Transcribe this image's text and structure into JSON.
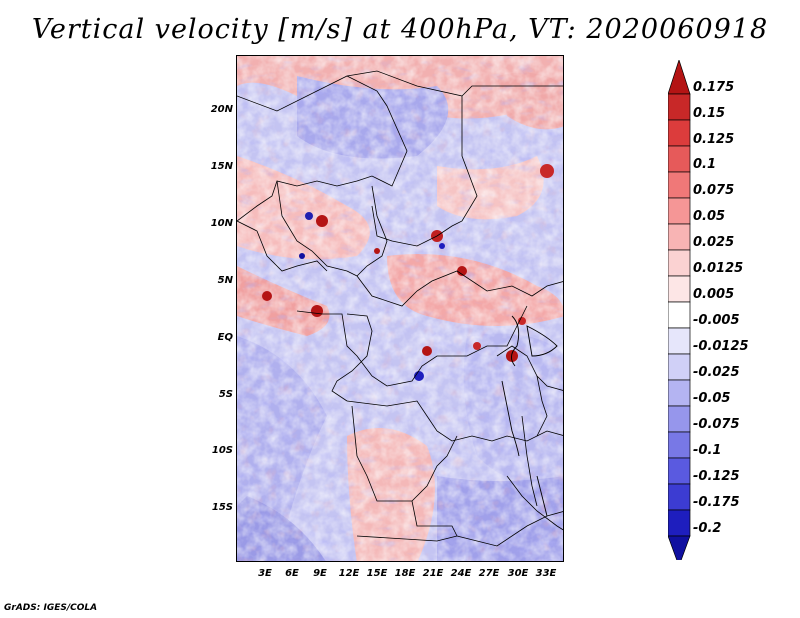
{
  "title": "Vertical velocity [m/s] at 400hPa, VT: 2020060918",
  "credit": "GrADS: IGES/COLA",
  "map": {
    "lat_labels": [
      "20N",
      "15N",
      "10N",
      "5N",
      "EQ",
      "5S",
      "10S",
      "15S"
    ],
    "lon_labels": [
      "3E",
      "6E",
      "9E",
      "12E",
      "15E",
      "18E",
      "21E",
      "24E",
      "27E",
      "30E",
      "33E"
    ]
  },
  "colorbar": {
    "levels": [
      "0.175",
      "0.15",
      "0.125",
      "0.1",
      "0.075",
      "0.05",
      "0.025",
      "0.0125",
      "0.005",
      "-0.005",
      "-0.0125",
      "-0.025",
      "-0.05",
      "-0.075",
      "-0.1",
      "-0.125",
      "-0.175",
      "-0.2"
    ],
    "colors": [
      "#b41414",
      "#c82828",
      "#dc3c3c",
      "#e65a5a",
      "#f07878",
      "#f59696",
      "#f8b4b4",
      "#fbd2d2",
      "#fde6e6",
      "#ffffff",
      "#e6e6fb",
      "#d0d0f7",
      "#b4b4f2",
      "#9696ec",
      "#7878e6",
      "#5a5ae0",
      "#3c3cd2",
      "#1e1ebe",
      "#1010a0"
    ]
  }
}
